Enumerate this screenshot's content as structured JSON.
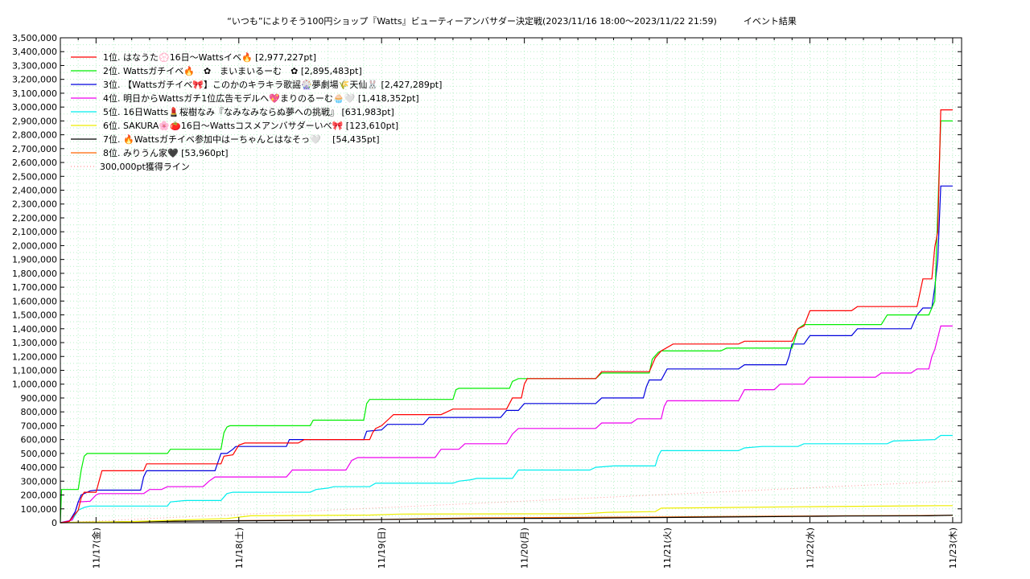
{
  "chart_data": {
    "type": "line",
    "title": "“いつも”によりそう100円ショップ『Watts』ビューティーアンバサダー決定戦(2023/11/16 18:00～2023/11/22 21:59)　　　イベント結果",
    "xlabel": "",
    "ylabel": "",
    "x_range": [
      "11/16 18:00",
      "11/23 00:00"
    ],
    "ylim": [
      0,
      3500000
    ],
    "yticks": [
      "0",
      "100,000",
      "200,000",
      "300,000",
      "400,000",
      "500,000",
      "600,000",
      "700,000",
      "800,000",
      "900,000",
      "1,000,000",
      "1,100,000",
      "1,200,000",
      "1,300,000",
      "1,400,000",
      "1,500,000",
      "1,600,000",
      "1,700,000",
      "1,800,000",
      "1,900,000",
      "2,000,000",
      "2,100,000",
      "2,200,000",
      "2,300,000",
      "2,400,000",
      "2,500,000",
      "2,600,000",
      "2,700,000",
      "2,800,000",
      "2,900,000",
      "3,000,000",
      "3,100,000",
      "3,200,000",
      "3,300,000",
      "3,400,000",
      "3,500,000"
    ],
    "xticks": [
      {
        "label": "11/17(金)",
        "hours": 6
      },
      {
        "label": "11/18(土)",
        "hours": 30
      },
      {
        "label": "11/19(日)",
        "hours": 54
      },
      {
        "label": "11/20(月)",
        "hours": 78
      },
      {
        "label": "11/21(火)",
        "hours": 102
      },
      {
        "label": "11/22(水)",
        "hours": 126
      },
      {
        "label": "11/23(木)",
        "hours": 150
      }
    ],
    "grid": true,
    "legend_position": "top-left",
    "series": [
      {
        "name": "1位. はなうた💮16日〜Wattsイベ🔥 [2,977,227pt]",
        "color": "#ff0000",
        "points": [
          [
            0,
            0
          ],
          [
            1.5,
            10000
          ],
          [
            3,
            90000
          ],
          [
            3.5,
            180000
          ],
          [
            4,
            220000
          ],
          [
            6,
            220000
          ],
          [
            6.5,
            300000
          ],
          [
            7,
            375000
          ],
          [
            14,
            375000
          ],
          [
            14.5,
            425000
          ],
          [
            22,
            425000
          ],
          [
            27,
            425000
          ],
          [
            27.5,
            480000
          ],
          [
            29,
            490000
          ],
          [
            30,
            560000
          ],
          [
            31,
            575000
          ],
          [
            40,
            575000
          ],
          [
            41,
            600000
          ],
          [
            52,
            600000
          ],
          [
            52.5,
            650000
          ],
          [
            53,
            680000
          ],
          [
            54,
            700000
          ],
          [
            56,
            780000
          ],
          [
            64,
            780000
          ],
          [
            66,
            820000
          ],
          [
            75,
            820000
          ],
          [
            76,
            900000
          ],
          [
            77.5,
            900000
          ],
          [
            78,
            1000000
          ],
          [
            78.5,
            1040000
          ],
          [
            90,
            1040000
          ],
          [
            91,
            1090000
          ],
          [
            99,
            1090000
          ],
          [
            100,
            1190000
          ],
          [
            101,
            1240000
          ],
          [
            103,
            1290000
          ],
          [
            114,
            1290000
          ],
          [
            115,
            1310000
          ],
          [
            123,
            1310000
          ],
          [
            124,
            1400000
          ],
          [
            125,
            1420000
          ],
          [
            126,
            1530000
          ],
          [
            133,
            1530000
          ],
          [
            134,
            1560000
          ],
          [
            144,
            1560000
          ],
          [
            145,
            1760000
          ],
          [
            146.5,
            1760000
          ],
          [
            147,
            1990000
          ],
          [
            147.5,
            2100000
          ],
          [
            148,
            2980000
          ],
          [
            150,
            2980000
          ]
        ]
      },
      {
        "name": "2位. Wattsガチイベ🔥　✿　まいまいるーむ　✿ [2,895,483pt]",
        "color": "#00ee00",
        "points": [
          [
            0,
            0
          ],
          [
            0.2,
            240000
          ],
          [
            3,
            240000
          ],
          [
            3.5,
            380000
          ],
          [
            4,
            480000
          ],
          [
            4.5,
            500000
          ],
          [
            18,
            500000
          ],
          [
            18.5,
            530000
          ],
          [
            27,
            530000
          ],
          [
            27.5,
            650000
          ],
          [
            28,
            690000
          ],
          [
            28.5,
            700000
          ],
          [
            42,
            700000
          ],
          [
            42.5,
            740000
          ],
          [
            51,
            740000
          ],
          [
            51.5,
            860000
          ],
          [
            52,
            890000
          ],
          [
            66,
            890000
          ],
          [
            66.5,
            960000
          ],
          [
            67,
            970000
          ],
          [
            75.5,
            970000
          ],
          [
            76,
            1020000
          ],
          [
            77,
            1040000
          ],
          [
            90,
            1040000
          ],
          [
            91,
            1080000
          ],
          [
            99,
            1080000
          ],
          [
            99.5,
            1180000
          ],
          [
            100.5,
            1230000
          ],
          [
            101,
            1240000
          ],
          [
            111,
            1240000
          ],
          [
            112,
            1260000
          ],
          [
            123,
            1260000
          ],
          [
            124,
            1400000
          ],
          [
            125,
            1430000
          ],
          [
            138,
            1430000
          ],
          [
            139,
            1500000
          ],
          [
            146,
            1500000
          ],
          [
            147,
            1600000
          ],
          [
            148,
            2900000
          ],
          [
            150,
            2900000
          ]
        ]
      },
      {
        "name": "3位. 【Wattsガチイベ🎀】このかのキラキラ歌謡🎡夢劇場🌾天仙🐰 [2,427,289pt]",
        "color": "#0000dd",
        "points": [
          [
            0,
            0
          ],
          [
            1.5,
            10000
          ],
          [
            2.5,
            80000
          ],
          [
            3,
            150000
          ],
          [
            3.5,
            200000
          ],
          [
            5,
            230000
          ],
          [
            6,
            235000
          ],
          [
            13.5,
            235000
          ],
          [
            14,
            330000
          ],
          [
            14.5,
            375000
          ],
          [
            26,
            375000
          ],
          [
            27,
            500000
          ],
          [
            28,
            500000
          ],
          [
            29,
            530000
          ],
          [
            29.5,
            550000
          ],
          [
            38,
            550000
          ],
          [
            38.5,
            600000
          ],
          [
            51,
            600000
          ],
          [
            51.5,
            660000
          ],
          [
            54,
            670000
          ],
          [
            55,
            710000
          ],
          [
            61,
            710000
          ],
          [
            62,
            760000
          ],
          [
            74,
            760000
          ],
          [
            75,
            810000
          ],
          [
            77,
            810000
          ],
          [
            78,
            860000
          ],
          [
            90,
            860000
          ],
          [
            91,
            900000
          ],
          [
            98,
            900000
          ],
          [
            98.5,
            980000
          ],
          [
            99,
            1030000
          ],
          [
            101,
            1030000
          ],
          [
            102,
            1110000
          ],
          [
            114,
            1110000
          ],
          [
            115,
            1140000
          ],
          [
            122,
            1140000
          ],
          [
            122.5,
            1200000
          ],
          [
            123,
            1290000
          ],
          [
            125,
            1290000
          ],
          [
            126,
            1350000
          ],
          [
            133,
            1350000
          ],
          [
            134,
            1400000
          ],
          [
            143,
            1400000
          ],
          [
            144,
            1500000
          ],
          [
            145,
            1550000
          ],
          [
            146.5,
            1550000
          ],
          [
            147,
            1700000
          ],
          [
            147.5,
            1900000
          ],
          [
            148,
            2430000
          ],
          [
            150,
            2430000
          ]
        ]
      },
      {
        "name": "4位. 明日からWattsガチ1位広告モデルへ💖まりのるーむ🧁🤍 [1,418,352pt]",
        "color": "#ee00ee",
        "points": [
          [
            0,
            0
          ],
          [
            2,
            20000
          ],
          [
            2.5,
            80000
          ],
          [
            3,
            150000
          ],
          [
            5,
            155000
          ],
          [
            6,
            200000
          ],
          [
            6.5,
            210000
          ],
          [
            14,
            210000
          ],
          [
            15,
            240000
          ],
          [
            17,
            240000
          ],
          [
            18,
            260000
          ],
          [
            24,
            260000
          ],
          [
            25,
            300000
          ],
          [
            26,
            330000
          ],
          [
            38,
            330000
          ],
          [
            39,
            380000
          ],
          [
            48,
            380000
          ],
          [
            49,
            450000
          ],
          [
            50,
            470000
          ],
          [
            63,
            470000
          ],
          [
            64,
            530000
          ],
          [
            67,
            530000
          ],
          [
            68,
            570000
          ],
          [
            75,
            570000
          ],
          [
            76,
            640000
          ],
          [
            77,
            680000
          ],
          [
            90,
            680000
          ],
          [
            91,
            720000
          ],
          [
            96,
            720000
          ],
          [
            97,
            750000
          ],
          [
            101,
            750000
          ],
          [
            101.5,
            840000
          ],
          [
            102,
            880000
          ],
          [
            114,
            880000
          ],
          [
            115,
            960000
          ],
          [
            120,
            960000
          ],
          [
            121,
            1000000
          ],
          [
            125,
            1000000
          ],
          [
            126,
            1050000
          ],
          [
            137,
            1050000
          ],
          [
            138,
            1080000
          ],
          [
            143,
            1080000
          ],
          [
            144,
            1110000
          ],
          [
            146,
            1110000
          ],
          [
            146.5,
            1200000
          ],
          [
            147,
            1250000
          ],
          [
            148,
            1420000
          ],
          [
            150,
            1420000
          ]
        ]
      },
      {
        "name": "5位. 16日Watts💄桜樹なみ『なみなみならぬ夢への挑戦』 [631,983pt]",
        "color": "#00eeee",
        "points": [
          [
            0,
            0
          ],
          [
            2,
            20000
          ],
          [
            3,
            90000
          ],
          [
            4,
            110000
          ],
          [
            5,
            120000
          ],
          [
            18,
            120000
          ],
          [
            18.5,
            150000
          ],
          [
            21,
            160000
          ],
          [
            27,
            160000
          ],
          [
            28,
            210000
          ],
          [
            29,
            220000
          ],
          [
            42,
            220000
          ],
          [
            43,
            240000
          ],
          [
            45,
            250000
          ],
          [
            46,
            260000
          ],
          [
            52,
            260000
          ],
          [
            53,
            285000
          ],
          [
            66,
            285000
          ],
          [
            67,
            300000
          ],
          [
            69,
            310000
          ],
          [
            70,
            320000
          ],
          [
            76,
            320000
          ],
          [
            77,
            380000
          ],
          [
            89,
            380000
          ],
          [
            90,
            400000
          ],
          [
            93,
            410000
          ],
          [
            100,
            410000
          ],
          [
            100.5,
            480000
          ],
          [
            101,
            520000
          ],
          [
            114,
            520000
          ],
          [
            115,
            540000
          ],
          [
            118,
            550000
          ],
          [
            124,
            550000
          ],
          [
            125,
            570000
          ],
          [
            139,
            570000
          ],
          [
            140,
            590000
          ],
          [
            147,
            600000
          ],
          [
            148,
            630000
          ],
          [
            150,
            630000
          ]
        ]
      },
      {
        "name": "6位. SAKURA🌸🍅16日〜Wattsコスメアンバサダーいべ🎀 [123,610pt]",
        "color": "#eeee00",
        "points": [
          [
            0,
            0
          ],
          [
            2,
            3000
          ],
          [
            12,
            8000
          ],
          [
            28,
            30000
          ],
          [
            32,
            50000
          ],
          [
            52,
            55000
          ],
          [
            57,
            62000
          ],
          [
            88,
            65000
          ],
          [
            92,
            75000
          ],
          [
            100,
            80000
          ],
          [
            101,
            105000
          ],
          [
            124,
            115000
          ],
          [
            148,
            123000
          ],
          [
            150,
            123000
          ]
        ]
      },
      {
        "name": "7位. 🔥Wattsガチイベ参加中はーちゃんとはなそっ🤍　 [54,435pt]",
        "color": "#000000",
        "points": [
          [
            0,
            0
          ],
          [
            5,
            3000
          ],
          [
            12,
            8000
          ],
          [
            24,
            12000
          ],
          [
            36,
            15000
          ],
          [
            52,
            22000
          ],
          [
            70,
            30000
          ],
          [
            84,
            32000
          ],
          [
            102,
            38000
          ],
          [
            124,
            45000
          ],
          [
            132,
            48000
          ],
          [
            146,
            50000
          ],
          [
            150,
            54000
          ]
        ]
      },
      {
        "name": "8位. みりうん家🖤 [53,960pt]",
        "color": "#ff6600",
        "points": [
          [
            0,
            0
          ],
          [
            3,
            3000
          ],
          [
            14,
            8000
          ],
          [
            30,
            15000
          ],
          [
            52,
            22000
          ],
          [
            70,
            35000
          ],
          [
            84,
            38000
          ],
          [
            102,
            42000
          ],
          [
            124,
            48000
          ],
          [
            132,
            50000
          ],
          [
            146,
            52000
          ],
          [
            150,
            54000
          ]
        ]
      },
      {
        "name": "300,000pt獲得ライン",
        "color": "#ff9999",
        "style": "dotted",
        "points": [
          [
            0,
            0
          ],
          [
            150,
            300000
          ]
        ]
      }
    ]
  }
}
